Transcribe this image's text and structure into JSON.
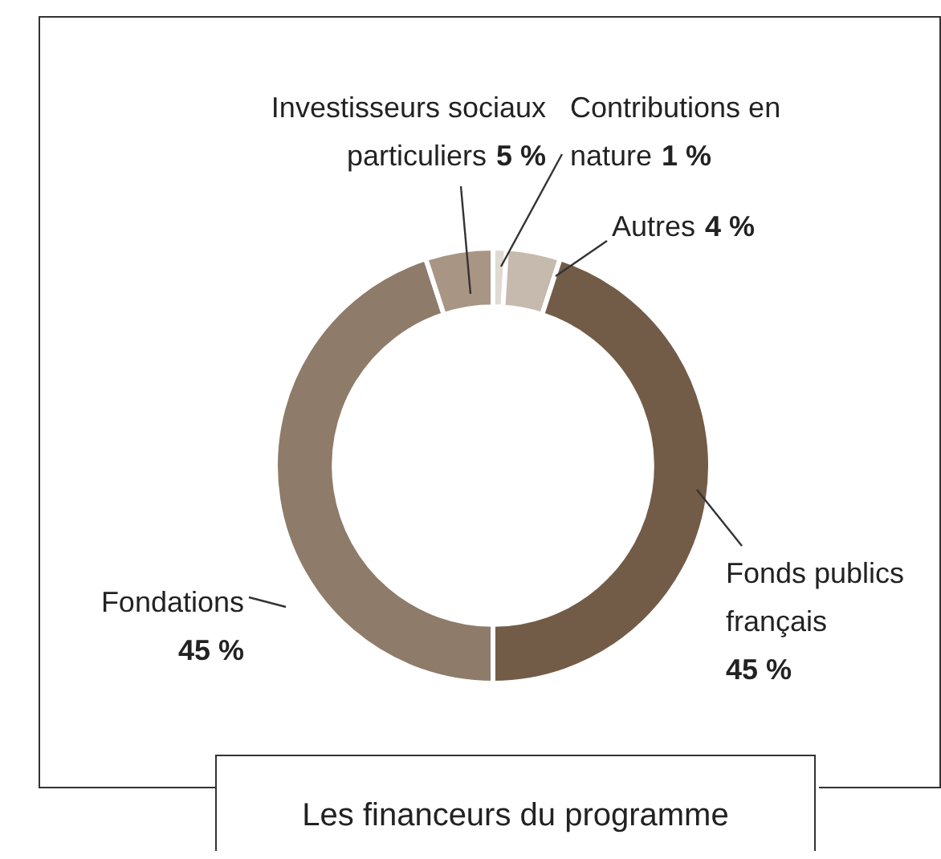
{
  "chart_data": {
    "type": "donut",
    "title": "Les financeurs du programme",
    "categories": [
      "Contributions en nature",
      "Autres",
      "Fonds publics français",
      "Fondations",
      "Investisseurs sociaux particuliers"
    ],
    "values": [
      1,
      4,
      45,
      45,
      5
    ],
    "value_labels": [
      "1 %",
      "4 %",
      "45 %",
      "45 %",
      "5 %"
    ],
    "colors": [
      "#e0dad3",
      "#c6b9ad",
      "#735c47",
      "#8e7b69",
      "#a89584"
    ],
    "legend": false
  }
}
